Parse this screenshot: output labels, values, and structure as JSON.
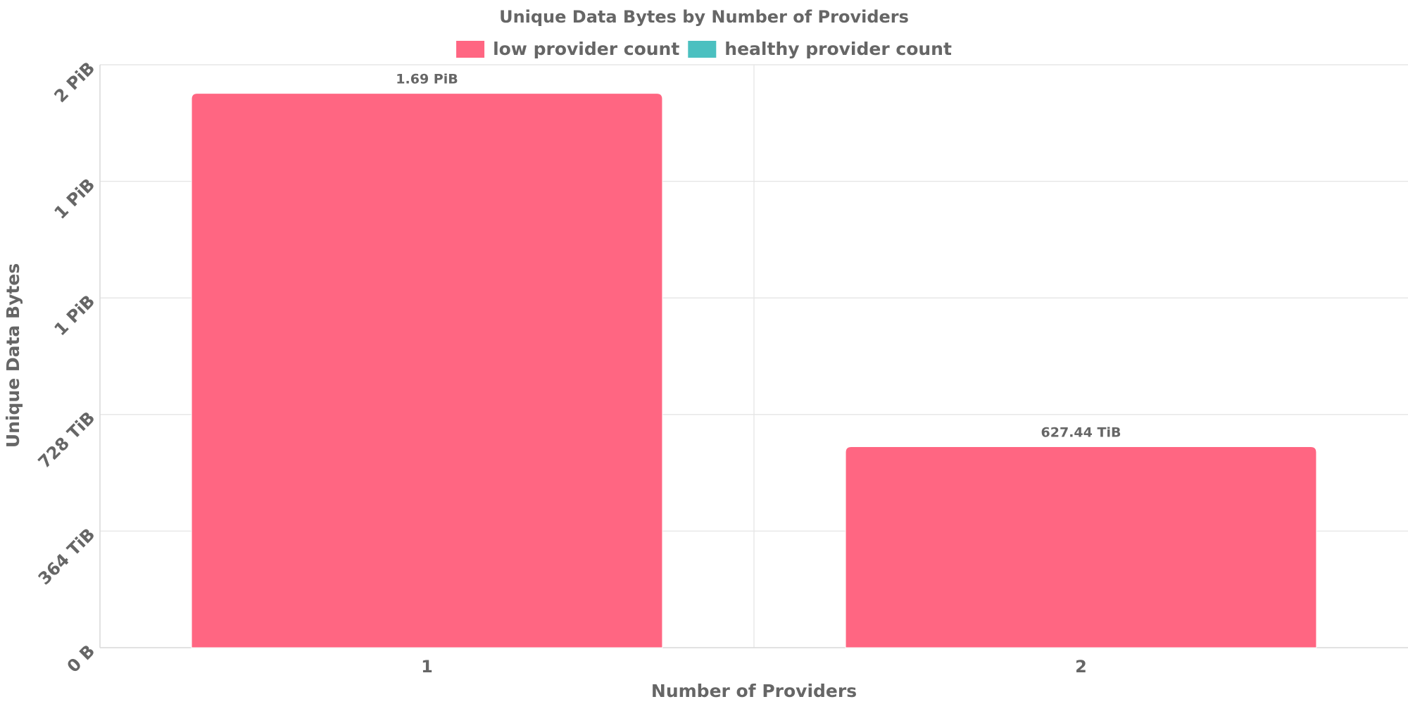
{
  "chart_data": {
    "type": "bar",
    "title": "Unique Data Bytes by Number of Providers",
    "xlabel": "Number of Providers",
    "ylabel": "Unique Data Bytes",
    "categories": [
      "1",
      "2"
    ],
    "series": [
      {
        "name": "low provider count",
        "color": "#ff6682",
        "values": [
          1.69,
          0.6127
        ]
      },
      {
        "name": "healthy provider count",
        "color": "#4bc0c0",
        "values": [
          null,
          null
        ]
      }
    ],
    "value_unit": "PiB",
    "data_labels": [
      "1.69 PiB",
      "627.44 TiB"
    ],
    "y_ticks": [
      {
        "value": 0,
        "label": "0 B"
      },
      {
        "value": 0.3555,
        "label": "364 TiB"
      },
      {
        "value": 0.7109,
        "label": "728 TiB"
      },
      {
        "value": 1.0664,
        "label": "1 PiB"
      },
      {
        "value": 1.4219,
        "label": "1 PiB"
      },
      {
        "value": 1.7773,
        "label": "2 PiB"
      }
    ],
    "ylim": [
      0,
      1.7773
    ],
    "grid": true,
    "legend_position": "top"
  }
}
